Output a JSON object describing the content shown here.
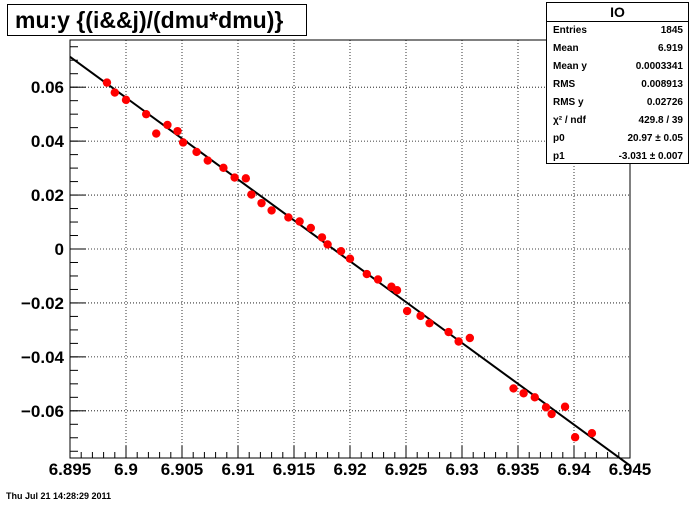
{
  "title": "mu:y {(i&&j)/(dmu*dmu)}",
  "stats": {
    "name": "IO",
    "rows": [
      {
        "key": "Entries",
        "value": "1845"
      },
      {
        "key": "Mean",
        "value": "6.919"
      },
      {
        "key": "Mean y",
        "value": "0.0003341"
      },
      {
        "key": "RMS",
        "value": "0.008913"
      },
      {
        "key": "RMS y",
        "value": "0.02726"
      },
      {
        "key": "χ² / ndf",
        "value": "429.8 / 39"
      },
      {
        "key": "p0",
        "value": "20.97 ± 0.05"
      },
      {
        "key": "p1",
        "value": "-3.031 ± 0.007"
      }
    ]
  },
  "datestamp": "Thu Jul 21 14:28:29 2011",
  "chart_data": {
    "type": "scatter",
    "title": "mu:y {(i&&j)/(dmu*dmu)}",
    "xlabel": "",
    "ylabel": "",
    "xlim": [
      6.895,
      6.945
    ],
    "ylim": [
      -0.0775,
      0.0775
    ],
    "x_ticks": [
      6.895,
      6.9,
      6.905,
      6.91,
      6.915,
      6.92,
      6.925,
      6.93,
      6.935,
      6.94,
      6.945
    ],
    "x_tick_labels": [
      "6.895",
      "6.9",
      "6.905",
      "6.91",
      "6.915",
      "6.92",
      "6.925",
      "6.93",
      "6.935",
      "6.94",
      "6.945"
    ],
    "y_ticks": [
      -0.06,
      -0.04,
      -0.02,
      0,
      0.02,
      0.04,
      0.06
    ],
    "y_tick_labels": [
      "−0.06",
      "−0.04",
      "−0.02",
      "0",
      "0.02",
      "0.04",
      "0.06"
    ],
    "grid": true,
    "marker_color": "#ff0000",
    "fit_color": "#000000",
    "points": [
      {
        "x": 6.8983,
        "y": 0.0617
      },
      {
        "x": 6.899,
        "y": 0.058
      },
      {
        "x": 6.9,
        "y": 0.0553
      },
      {
        "x": 6.9018,
        "y": 0.05
      },
      {
        "x": 6.9027,
        "y": 0.0428
      },
      {
        "x": 6.9037,
        "y": 0.046
      },
      {
        "x": 6.9046,
        "y": 0.0437
      },
      {
        "x": 6.9051,
        "y": 0.0395
      },
      {
        "x": 6.9063,
        "y": 0.036
      },
      {
        "x": 6.9073,
        "y": 0.0328
      },
      {
        "x": 6.9087,
        "y": 0.0301
      },
      {
        "x": 6.9097,
        "y": 0.0265
      },
      {
        "x": 6.9107,
        "y": 0.0262
      },
      {
        "x": 6.9112,
        "y": 0.0202
      },
      {
        "x": 6.9121,
        "y": 0.017
      },
      {
        "x": 6.913,
        "y": 0.0143
      },
      {
        "x": 6.9145,
        "y": 0.0117
      },
      {
        "x": 6.9155,
        "y": 0.0102
      },
      {
        "x": 6.9165,
        "y": 0.0078
      },
      {
        "x": 6.9175,
        "y": 0.0043
      },
      {
        "x": 6.918,
        "y": 0.0017
      },
      {
        "x": 6.9192,
        "y": -0.0008
      },
      {
        "x": 6.92,
        "y": -0.0036
      },
      {
        "x": 6.9215,
        "y": -0.0093
      },
      {
        "x": 6.9225,
        "y": -0.0113
      },
      {
        "x": 6.9237,
        "y": -0.014
      },
      {
        "x": 6.9242,
        "y": -0.0153
      },
      {
        "x": 6.9251,
        "y": -0.023
      },
      {
        "x": 6.9263,
        "y": -0.0248
      },
      {
        "x": 6.9271,
        "y": -0.0275
      },
      {
        "x": 6.9288,
        "y": -0.0308
      },
      {
        "x": 6.9297,
        "y": -0.0343
      },
      {
        "x": 6.9307,
        "y": -0.033
      },
      {
        "x": 6.9346,
        "y": -0.0517
      },
      {
        "x": 6.9355,
        "y": -0.0535
      },
      {
        "x": 6.9365,
        "y": -0.055
      },
      {
        "x": 6.9375,
        "y": -0.0587
      },
      {
        "x": 6.938,
        "y": -0.0612
      },
      {
        "x": 6.9392,
        "y": -0.0585
      },
      {
        "x": 6.9401,
        "y": -0.0698
      },
      {
        "x": 6.9416,
        "y": -0.0683
      }
    ],
    "fit": {
      "p0": 20.97,
      "p1": -3.031
    }
  }
}
